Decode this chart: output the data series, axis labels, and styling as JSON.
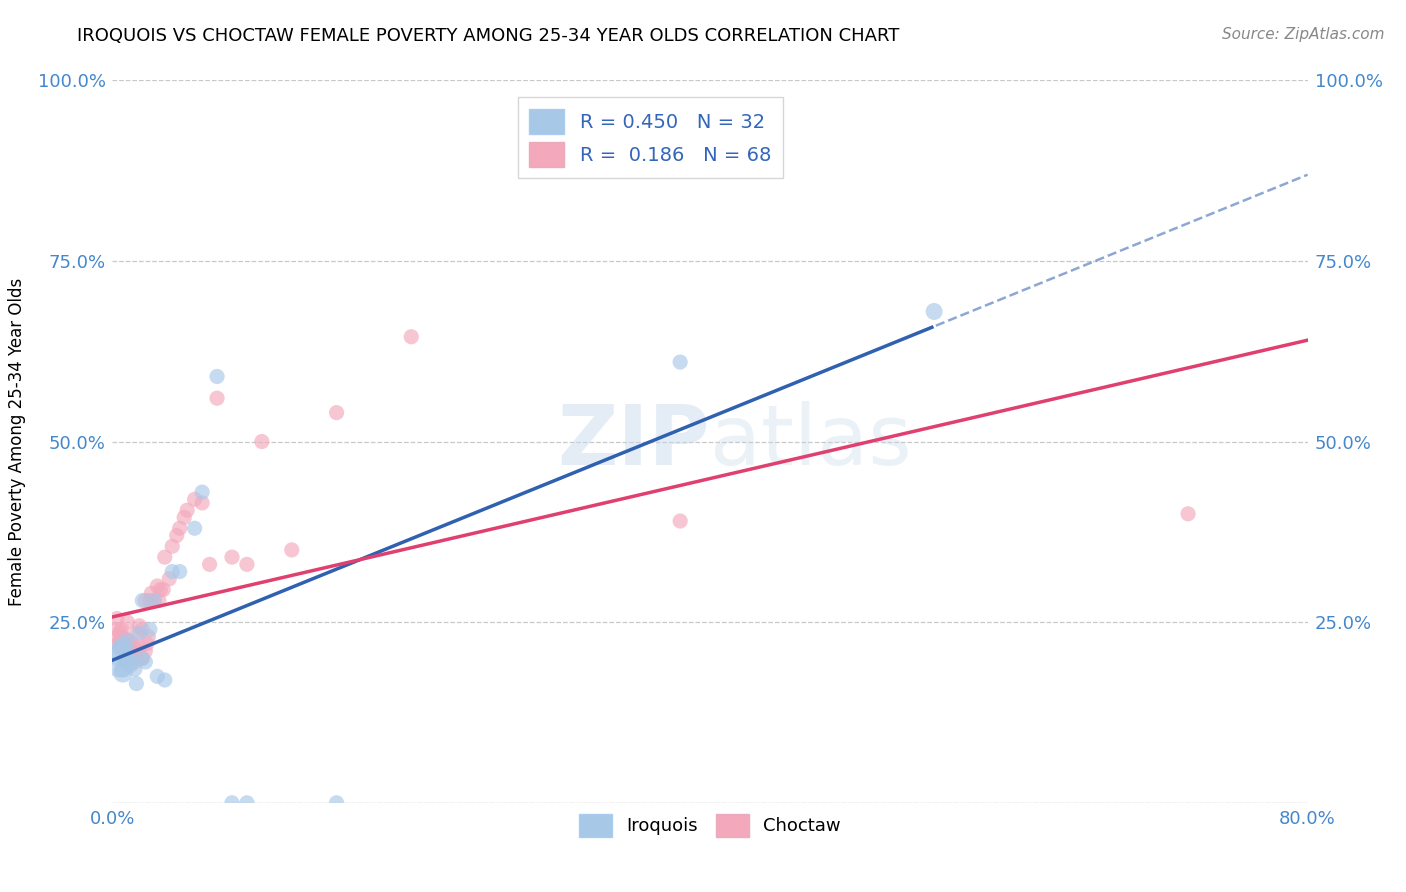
{
  "title": "IROQUOIS VS CHOCTAW FEMALE POVERTY AMONG 25-34 YEAR OLDS CORRELATION CHART",
  "source": "Source: ZipAtlas.com",
  "ylabel": "Female Poverty Among 25-34 Year Olds",
  "xlim": [
    0.0,
    0.8
  ],
  "ylim": [
    0.0,
    1.0
  ],
  "background_color": "#ffffff",
  "watermark_zip": "ZIP",
  "watermark_atlas": "atlas",
  "iroquois_color": "#a8c8e8",
  "choctaw_color": "#f4a8bc",
  "iroquois_line_color": "#3060b0",
  "choctaw_line_color": "#e04070",
  "iroquois_R": 0.45,
  "iroquois_N": 32,
  "choctaw_R": 0.186,
  "choctaw_N": 68,
  "iroquois_x": [
    0.005,
    0.005,
    0.005,
    0.007,
    0.007,
    0.007,
    0.008,
    0.01,
    0.01,
    0.01,
    0.012,
    0.013,
    0.015,
    0.016,
    0.018,
    0.02,
    0.02,
    0.022,
    0.025,
    0.028,
    0.03,
    0.035,
    0.04,
    0.045,
    0.055,
    0.06,
    0.07,
    0.08,
    0.09,
    0.15,
    0.38,
    0.55
  ],
  "iroquois_y": [
    0.195,
    0.205,
    0.215,
    0.18,
    0.185,
    0.22,
    0.195,
    0.2,
    0.21,
    0.225,
    0.19,
    0.195,
    0.185,
    0.165,
    0.235,
    0.2,
    0.28,
    0.195,
    0.24,
    0.28,
    0.175,
    0.17,
    0.32,
    0.32,
    0.38,
    0.43,
    0.59,
    0.0,
    0.0,
    0.0,
    0.61,
    0.68
  ],
  "iroquois_sizes": [
    500,
    300,
    150,
    200,
    150,
    120,
    120,
    120,
    120,
    120,
    120,
    120,
    120,
    120,
    120,
    120,
    120,
    120,
    120,
    120,
    120,
    120,
    120,
    120,
    120,
    120,
    120,
    120,
    120,
    120,
    120,
    150
  ],
  "choctaw_x": [
    0.003,
    0.003,
    0.003,
    0.004,
    0.005,
    0.005,
    0.005,
    0.006,
    0.006,
    0.007,
    0.007,
    0.008,
    0.008,
    0.008,
    0.009,
    0.01,
    0.01,
    0.01,
    0.01,
    0.01,
    0.011,
    0.011,
    0.012,
    0.012,
    0.013,
    0.013,
    0.014,
    0.014,
    0.015,
    0.015,
    0.016,
    0.016,
    0.017,
    0.018,
    0.018,
    0.019,
    0.02,
    0.02,
    0.022,
    0.022,
    0.023,
    0.024,
    0.025,
    0.026,
    0.028,
    0.03,
    0.031,
    0.032,
    0.034,
    0.035,
    0.038,
    0.04,
    0.043,
    0.045,
    0.048,
    0.05,
    0.055,
    0.06,
    0.065,
    0.07,
    0.08,
    0.09,
    0.1,
    0.12,
    0.15,
    0.2,
    0.38,
    0.72
  ],
  "choctaw_y": [
    0.23,
    0.24,
    0.255,
    0.22,
    0.215,
    0.225,
    0.235,
    0.22,
    0.24,
    0.215,
    0.23,
    0.2,
    0.21,
    0.225,
    0.195,
    0.195,
    0.2,
    0.215,
    0.225,
    0.25,
    0.2,
    0.215,
    0.195,
    0.21,
    0.2,
    0.22,
    0.2,
    0.215,
    0.195,
    0.21,
    0.2,
    0.235,
    0.205,
    0.215,
    0.245,
    0.2,
    0.2,
    0.24,
    0.21,
    0.28,
    0.22,
    0.23,
    0.28,
    0.29,
    0.28,
    0.3,
    0.28,
    0.295,
    0.295,
    0.34,
    0.31,
    0.355,
    0.37,
    0.38,
    0.395,
    0.405,
    0.42,
    0.415,
    0.33,
    0.56,
    0.34,
    0.33,
    0.5,
    0.35,
    0.54,
    0.645,
    0.39,
    0.4
  ],
  "choctaw_sizes": [
    120,
    120,
    120,
    120,
    120,
    120,
    120,
    120,
    120,
    120,
    120,
    120,
    120,
    120,
    120,
    120,
    120,
    120,
    120,
    120,
    120,
    120,
    120,
    120,
    120,
    120,
    120,
    120,
    120,
    120,
    120,
    120,
    120,
    120,
    120,
    120,
    120,
    120,
    120,
    120,
    120,
    120,
    120,
    120,
    120,
    120,
    120,
    120,
    120,
    120,
    120,
    120,
    120,
    120,
    120,
    120,
    120,
    120,
    120,
    120,
    120,
    120,
    120,
    120,
    120,
    120,
    120,
    120
  ]
}
